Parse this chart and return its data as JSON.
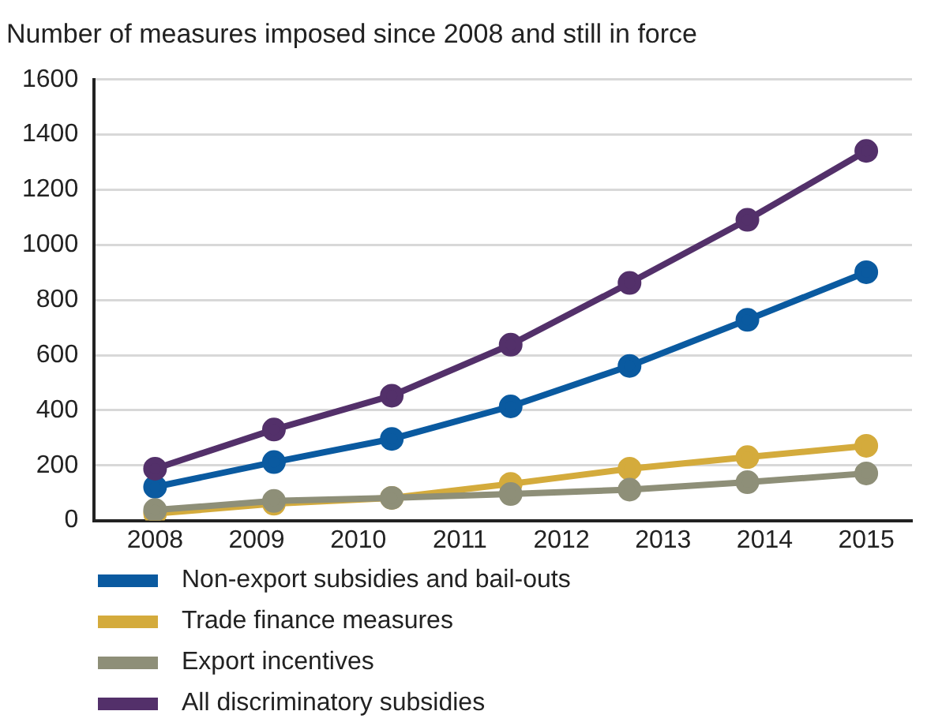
{
  "chart_data": {
    "type": "line",
    "title": "Number of measures imposed since 2008 and still in force",
    "x": [
      2008,
      2009.17,
      2010.33,
      2011.5,
      2012.67,
      2013.83,
      2015
    ],
    "xlim": [
      2007.4,
      2015.45
    ],
    "xticks": [
      2008,
      2009,
      2010,
      2011,
      2012,
      2013,
      2014,
      2015
    ],
    "ylim": [
      0,
      1600
    ],
    "yticks": [
      0,
      200,
      400,
      600,
      800,
      1000,
      1200,
      1400,
      1600
    ],
    "grid": "y",
    "legend": "bottom",
    "marker": "circle",
    "line_style": "solid",
    "series": [
      {
        "name": "Non-export subsidies and bail-outs",
        "color": "#0a5aa0",
        "values": [
          122,
          212,
          296,
          414,
          561,
          728,
          901
        ]
      },
      {
        "name": "Trade finance measures",
        "color": "#d4ab3c",
        "values": [
          25,
          61,
          82,
          133,
          188,
          230,
          271
        ]
      },
      {
        "name": "Export incentives",
        "color": "#8e8f78",
        "values": [
          38,
          71,
          82,
          96,
          112,
          139,
          171
        ]
      },
      {
        "name": "All discriminatory subsidies",
        "color": "#53306a",
        "values": [
          188,
          330,
          453,
          638,
          862,
          1091,
          1341
        ]
      }
    ]
  }
}
